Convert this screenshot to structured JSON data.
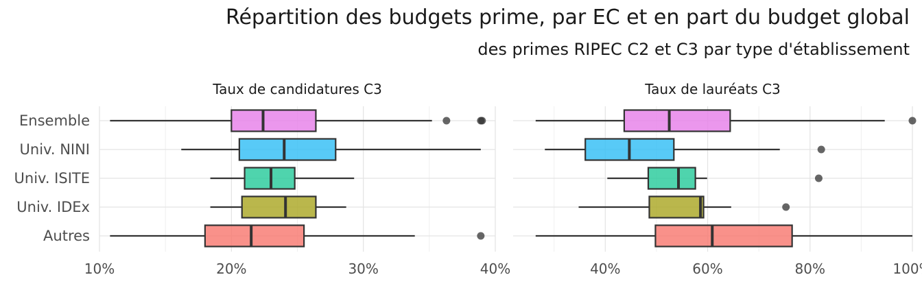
{
  "title": "Répartition des budgets prime, par EC et en part du budget global",
  "subtitle": "des primes RIPEC C2 et C3 par type d'établissement",
  "chart_data": [
    {
      "type": "boxplot",
      "title": "Taux de candidatures C3",
      "categories": [
        "Ensemble",
        "Univ. NINI",
        "Univ. ISITE",
        "Univ. IDEx",
        "Autres"
      ],
      "colors": [
        "#e67de9",
        "#2ebdf5",
        "#23c999",
        "#a9a51f",
        "#f8766d"
      ],
      "xlim": [
        10,
        40
      ],
      "xticks": [
        10,
        20,
        30,
        40
      ],
      "xtick_labels": [
        "10%",
        "20%",
        "30%",
        "40%"
      ],
      "grid": true,
      "boxes": [
        {
          "category": "Ensemble",
          "whisker_low": 10.8,
          "q1": 20.0,
          "median": 22.4,
          "q3": 26.4,
          "whisker_high": 35.2,
          "outliers": [
            36.3,
            38.9,
            39.0
          ]
        },
        {
          "category": "Univ. NINI",
          "whisker_low": 16.2,
          "q1": 20.6,
          "median": 24.0,
          "q3": 27.9,
          "whisker_high": 38.9,
          "outliers": []
        },
        {
          "category": "Univ. ISITE",
          "whisker_low": 18.4,
          "q1": 21.0,
          "median": 23.0,
          "q3": 24.8,
          "whisker_high": 29.3,
          "outliers": []
        },
        {
          "category": "Univ. IDEx",
          "whisker_low": 18.4,
          "q1": 20.8,
          "median": 24.1,
          "q3": 26.4,
          "whisker_high": 28.7,
          "outliers": []
        },
        {
          "category": "Autres",
          "whisker_low": 10.8,
          "q1": 18.0,
          "median": 21.5,
          "q3": 25.5,
          "whisker_high": 33.9,
          "outliers": [
            38.9
          ]
        }
      ]
    },
    {
      "type": "boxplot",
      "title": "Taux de lauréats C3",
      "categories": [
        "Ensemble",
        "Univ. NINI",
        "Univ. ISITE",
        "Univ. IDEx",
        "Autres"
      ],
      "colors": [
        "#e67de9",
        "#2ebdf5",
        "#23c999",
        "#a9a51f",
        "#f8766d"
      ],
      "xlim": [
        22,
        100
      ],
      "xticks": [
        40,
        60,
        80,
        100
      ],
      "xtick_labels": [
        "40%",
        "60%",
        "80%",
        "100%"
      ],
      "grid": true,
      "boxes": [
        {
          "category": "Ensemble",
          "whisker_low": 26.4,
          "q1": 43.7,
          "median": 52.5,
          "q3": 64.4,
          "whisker_high": 94.6,
          "outliers": [
            100.0
          ]
        },
        {
          "category": "Univ. NINI",
          "whisker_low": 28.2,
          "q1": 36.1,
          "median": 44.7,
          "q3": 53.4,
          "whisker_high": 74.1,
          "outliers": [
            82.2
          ]
        },
        {
          "category": "Univ. ISITE",
          "whisker_low": 40.4,
          "q1": 48.4,
          "median": 54.3,
          "q3": 57.6,
          "whisker_high": 59.9,
          "outliers": [
            81.7
          ]
        },
        {
          "category": "Univ. IDEx",
          "whisker_low": 34.8,
          "q1": 48.6,
          "median": 58.6,
          "q3": 59.2,
          "whisker_high": 64.6,
          "outliers": [
            75.3
          ]
        },
        {
          "category": "Autres",
          "whisker_low": 26.4,
          "q1": 49.8,
          "median": 60.9,
          "q3": 76.5,
          "whisker_high": 100.0,
          "outliers": []
        }
      ]
    }
  ]
}
